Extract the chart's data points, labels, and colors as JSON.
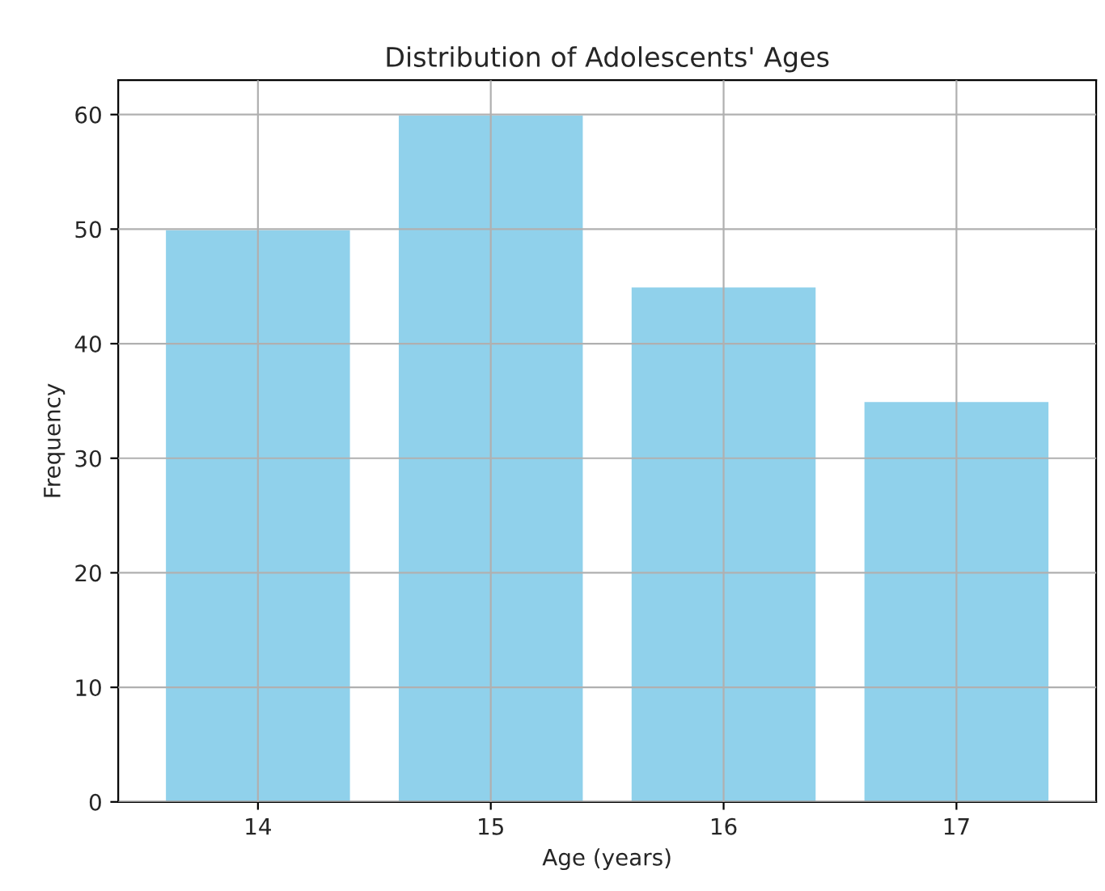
{
  "chart_data": {
    "type": "bar",
    "title": "Distribution of Adolescents' Ages",
    "xlabel": "Age (years)",
    "ylabel": "Frequency",
    "categories": [
      "14",
      "15",
      "16",
      "17"
    ],
    "values": [
      50,
      60,
      45,
      35
    ],
    "color": "#90d1eb",
    "ylim": [
      0,
      63
    ],
    "yticks": [
      0,
      10,
      20,
      30,
      40,
      50,
      60
    ],
    "grid": true
  }
}
